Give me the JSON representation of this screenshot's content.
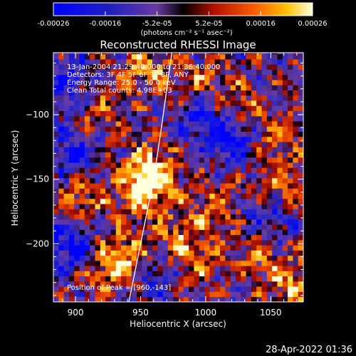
{
  "chart_data": {
    "type": "heatmap",
    "title": "Reconstructed RHESSI Image",
    "xlabel": "Heliocentric X (arcsec)",
    "ylabel": "Heliocentric Y (arcsec)",
    "xlim": [
      883,
      1075
    ],
    "ylim": [
      -245,
      -52
    ],
    "xticks": [
      900,
      950,
      1000,
      1050
    ],
    "yticks": [
      -100,
      -150,
      -200
    ],
    "colorbar": {
      "ticks": [
        "-0.00026",
        "-0.00016",
        "-5.2e-05",
        "5.2e-05",
        "0.00016",
        "0.00026"
      ],
      "units": "(photons cm⁻² s⁻¹ asec⁻²)",
      "range": [
        -0.00026,
        0.00026
      ]
    },
    "annotations": [
      "13-Jan-2004 21:29:40.000 to 21:36:40.000",
      "Detectors: 3F 4F 5F 6F 7F 8F, ANY",
      "Energy Range: 25.0 - 50.0 keV",
      "Clean    Total counts: 4.98E+03"
    ],
    "peak_label": "Position of Peak = [960,-143]",
    "peak": [
      960,
      -143
    ],
    "limb": [
      [
        941,
        -245
      ],
      [
        950,
        -200
      ],
      [
        960,
        -150
      ],
      [
        966,
        -110
      ],
      [
        974,
        -52
      ]
    ],
    "hotspots": [
      {
        "x": 958,
        "y": -144,
        "v": 1.0
      },
      {
        "x": 950,
        "y": -160,
        "v": 0.6
      },
      {
        "x": 905,
        "y": -160,
        "v": 0.65
      },
      {
        "x": 940,
        "y": -210,
        "v": 0.75
      },
      {
        "x": 925,
        "y": -220,
        "v": 0.5
      },
      {
        "x": 1010,
        "y": -170,
        "v": 0.55
      },
      {
        "x": 980,
        "y": -190,
        "v": 0.5
      },
      {
        "x": 1050,
        "y": -120,
        "v": 0.55
      },
      {
        "x": 1060,
        "y": -155,
        "v": 0.5
      },
      {
        "x": 1025,
        "y": -95,
        "v": 0.5
      },
      {
        "x": 1065,
        "y": -230,
        "v": 0.7
      },
      {
        "x": 1000,
        "y": -75,
        "v": 0.5
      },
      {
        "x": 955,
        "y": -65,
        "v": 0.65
      },
      {
        "x": 990,
        "y": -215,
        "v": 0.5
      },
      {
        "x": 1040,
        "y": -205,
        "v": 0.5
      },
      {
        "x": 915,
        "y": -100,
        "v": 0.45
      }
    ],
    "coldspots": [
      {
        "x": 893,
        "y": -200,
        "v": -0.8
      },
      {
        "x": 900,
        "y": -130,
        "v": -0.7
      },
      {
        "x": 1025,
        "y": -120,
        "v": -0.85
      },
      {
        "x": 1000,
        "y": -100,
        "v": -0.6
      },
      {
        "x": 1045,
        "y": -180,
        "v": -0.6
      },
      {
        "x": 960,
        "y": -225,
        "v": -0.6
      },
      {
        "x": 890,
        "y": -75,
        "v": -0.6
      }
    ]
  },
  "timestamp": "28-Apr-2022 01:36"
}
